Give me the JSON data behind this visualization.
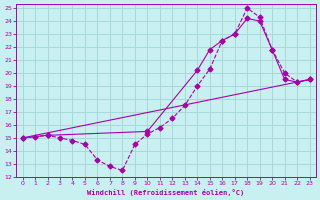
{
  "xlabel": "Windchill (Refroidissement éolien,°C)",
  "bg_color": "#c8f0f0",
  "grid_color": "#a8d8d8",
  "line_color": "#aa00aa",
  "xlim": [
    -0.5,
    23.5
  ],
  "ylim": [
    12,
    25.3
  ],
  "yticks": [
    12,
    13,
    14,
    15,
    16,
    17,
    18,
    19,
    20,
    21,
    22,
    23,
    24,
    25
  ],
  "xticks": [
    0,
    1,
    2,
    3,
    4,
    5,
    6,
    7,
    8,
    9,
    10,
    11,
    12,
    13,
    14,
    15,
    16,
    17,
    18,
    19,
    20,
    21,
    22,
    23
  ],
  "line1_x": [
    0,
    1,
    2,
    3,
    4,
    5,
    6,
    7,
    8,
    9,
    10,
    11,
    12,
    13,
    14,
    15,
    16,
    17,
    18,
    19,
    20,
    21,
    22,
    23
  ],
  "line1_y": [
    15.0,
    15.1,
    15.2,
    15.0,
    14.8,
    14.5,
    13.3,
    12.8,
    12.5,
    14.5,
    15.3,
    15.8,
    16.5,
    17.5,
    19.0,
    20.3,
    22.5,
    23.0,
    25.0,
    24.3,
    21.8,
    20.0,
    19.3,
    19.5
  ],
  "line2_x": [
    0,
    2,
    10,
    14,
    15,
    16,
    17,
    18,
    19,
    20,
    21,
    22,
    23
  ],
  "line2_y": [
    15.0,
    15.2,
    15.5,
    20.2,
    21.8,
    22.5,
    23.0,
    24.2,
    24.0,
    21.8,
    19.5,
    19.3,
    19.5
  ],
  "line3_x": [
    0,
    23
  ],
  "line3_y": [
    15.0,
    19.5
  ]
}
